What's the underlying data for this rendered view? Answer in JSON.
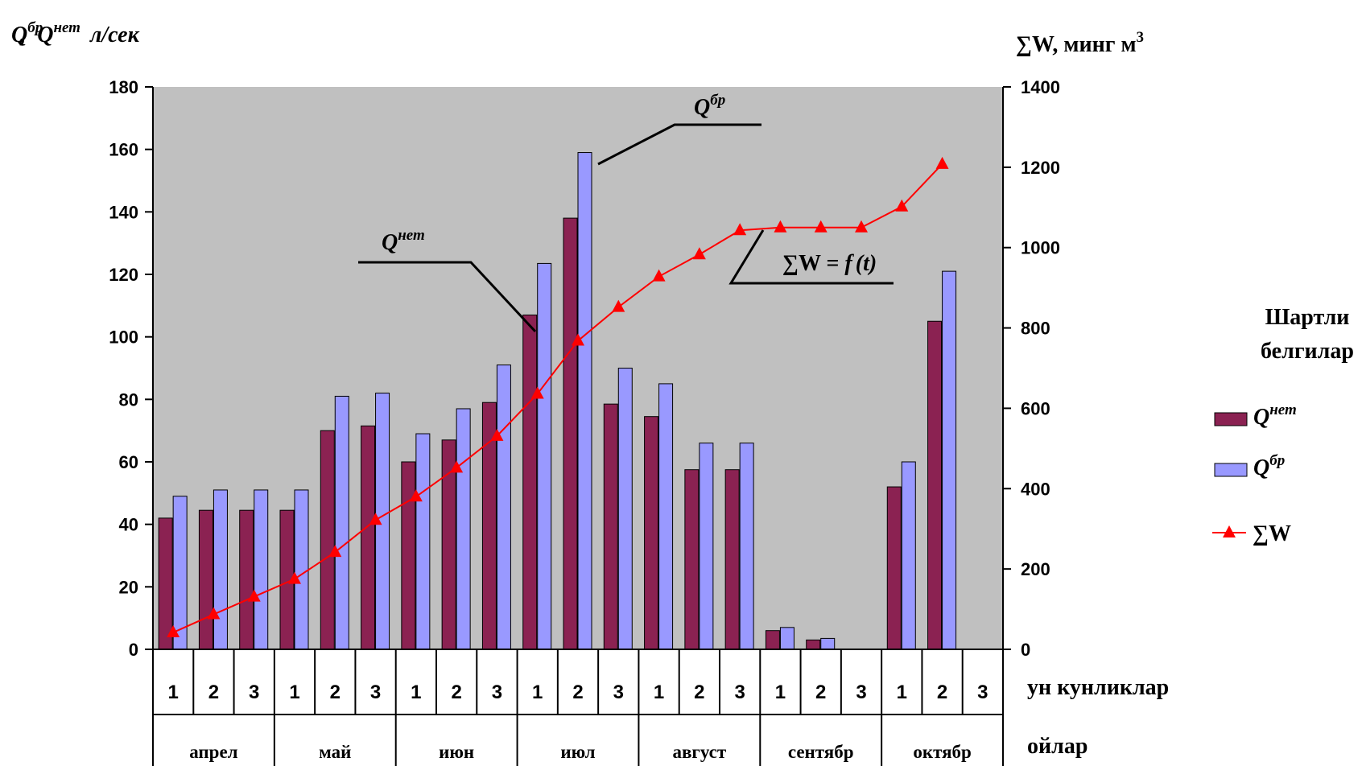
{
  "chart_data": {
    "type": "bar",
    "y_left_label_q1": "Q",
    "y_left_label_q1_sup": "бр",
    "y_left_label_q2": "Q",
    "y_left_label_q2_sup": "нет",
    "y_left_label_sep": ",",
    "y_left_unit": "л/сек",
    "y_right_label": "∑W, минг м",
    "y_right_label_sup": "3",
    "ylim_left": [
      0,
      180
    ],
    "ylim_right": [
      0,
      1400
    ],
    "y_ticks_left": [
      0,
      20,
      40,
      60,
      80,
      100,
      120,
      140,
      160,
      180
    ],
    "y_ticks_right": [
      0,
      200,
      400,
      600,
      800,
      1000,
      1200,
      1400
    ],
    "categories": [
      "1",
      "2",
      "3",
      "1",
      "2",
      "3",
      "1",
      "2",
      "3",
      "1",
      "2",
      "3",
      "1",
      "2",
      "3",
      "1",
      "2",
      "3",
      "1",
      "2",
      "3"
    ],
    "months": [
      "апрел",
      "май",
      "июн",
      "июл",
      "август",
      "сентябр",
      "октябр"
    ],
    "x_axis_label": "ун кунликлар",
    "month_axis_label": "ойлар",
    "series": [
      {
        "name": "Q",
        "name_sup": "нет",
        "kind": "bar",
        "color": "#8B2252",
        "values": [
          42,
          44.5,
          44.5,
          44.5,
          70,
          71.5,
          60,
          67,
          79,
          107,
          138,
          78.5,
          74.5,
          57.5,
          57.5,
          6,
          3,
          0,
          52,
          105,
          0
        ]
      },
      {
        "name": "Q",
        "name_sup": "бр",
        "kind": "bar",
        "color": "#9999FF",
        "values": [
          49,
          51,
          51,
          51,
          81,
          82,
          69,
          77,
          91,
          123.5,
          159,
          90,
          85,
          66,
          66,
          7,
          3.5,
          0,
          60,
          121,
          0
        ]
      },
      {
        "name": "∑W",
        "kind": "line",
        "axis": "right",
        "color": "#FF0000",
        "marker": "triangle",
        "values": [
          42,
          87,
          131,
          175,
          242,
          322,
          380,
          452,
          531,
          636,
          768,
          852,
          928,
          983,
          1043,
          1050,
          1050,
          1050,
          1102,
          1208,
          null
        ]
      }
    ],
    "annotations": [
      {
        "text": "Q",
        "sup": "бр"
      },
      {
        "text": "Q",
        "sup": "нет"
      },
      {
        "text": "∑W = ",
        "func": "f",
        "arg": "(t)"
      }
    ],
    "legend": {
      "title_line1": "Шартли",
      "title_line2": "белгилар",
      "placement": "right"
    },
    "grid": false,
    "plot_bg": "#C0C0C0"
  }
}
